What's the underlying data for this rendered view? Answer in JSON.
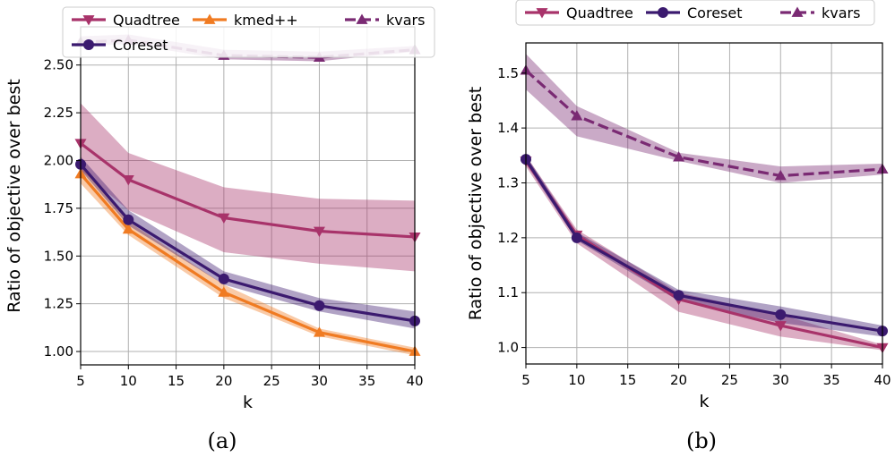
{
  "chart_data": [
    {
      "type": "line",
      "caption": "(a)",
      "xlabel": "k",
      "ylabel": "Ratio of objective over best",
      "xlim": [
        5,
        40
      ],
      "ylim": [
        0.93,
        2.7
      ],
      "xticks": [
        5,
        10,
        15,
        20,
        25,
        30,
        35,
        40
      ],
      "yticks": [
        1.0,
        1.25,
        1.5,
        1.75,
        2.0,
        2.25,
        2.5
      ],
      "ytick_labels": [
        "1.00",
        "1.25",
        "1.50",
        "1.75",
        "2.00",
        "2.25",
        "2.50"
      ],
      "grid": true,
      "legend_placement": "top",
      "x": [
        5,
        10,
        20,
        30,
        40
      ],
      "series": [
        {
          "name": "Quadtree",
          "marker": "triangle-down",
          "style": "solid",
          "color": "#a8336a",
          "values": [
            2.09,
            1.9,
            1.7,
            1.63,
            1.6
          ],
          "lower": [
            1.95,
            1.74,
            1.52,
            1.46,
            1.42
          ],
          "upper": [
            2.3,
            2.04,
            1.86,
            1.8,
            1.79
          ]
        },
        {
          "name": "kmed++",
          "marker": "triangle-up",
          "style": "solid",
          "color": "#f07b22",
          "values": [
            1.93,
            1.64,
            1.31,
            1.1,
            1.0
          ],
          "lower": [
            1.88,
            1.61,
            1.28,
            1.08,
            0.98
          ],
          "upper": [
            1.97,
            1.68,
            1.35,
            1.12,
            1.02
          ]
        },
        {
          "name": "kvars",
          "marker": "triangle-up",
          "style": "dashed",
          "color": "#7a2a73",
          "values": [
            2.62,
            2.63,
            2.55,
            2.54,
            2.58
          ],
          "lower": [
            2.6,
            2.61,
            2.53,
            2.52,
            2.57
          ],
          "upper": [
            2.65,
            2.66,
            2.58,
            2.57,
            2.6
          ]
        },
        {
          "name": "Coreset",
          "marker": "circle",
          "style": "solid",
          "color": "#3b1a6f",
          "values": [
            1.98,
            1.69,
            1.38,
            1.24,
            1.16
          ],
          "lower": [
            1.95,
            1.66,
            1.35,
            1.21,
            1.12
          ],
          "upper": [
            2.02,
            1.74,
            1.42,
            1.28,
            1.21
          ]
        }
      ]
    },
    {
      "type": "line",
      "caption": "(b)",
      "xlabel": "k",
      "ylabel": "Ratio of objective over best",
      "xlim": [
        5,
        40
      ],
      "ylim": [
        0.97,
        1.555
      ],
      "xticks": [
        5,
        10,
        15,
        20,
        25,
        30,
        35,
        40
      ],
      "yticks": [
        1.0,
        1.1,
        1.2,
        1.3,
        1.4,
        1.5
      ],
      "ytick_labels": [
        "1.0",
        "1.1",
        "1.2",
        "1.3",
        "1.4",
        "1.5"
      ],
      "grid": true,
      "legend_placement": "top",
      "x": [
        5,
        10,
        20,
        30,
        40
      ],
      "series": [
        {
          "name": "Quadtree",
          "marker": "triangle-down",
          "style": "solid",
          "color": "#a8336a",
          "values": [
            1.34,
            1.205,
            1.088,
            1.04,
            1.0
          ],
          "lower": [
            1.33,
            1.19,
            1.065,
            1.02,
            0.995
          ],
          "upper": [
            1.35,
            1.215,
            1.1,
            1.06,
            1.005
          ]
        },
        {
          "name": "Coreset",
          "marker": "circle",
          "style": "solid",
          "color": "#3b1a6f",
          "values": [
            1.343,
            1.2,
            1.095,
            1.06,
            1.03
          ],
          "lower": [
            1.335,
            1.195,
            1.085,
            1.045,
            1.02
          ],
          "upper": [
            1.35,
            1.21,
            1.105,
            1.075,
            1.04
          ]
        },
        {
          "name": "kvars",
          "marker": "triangle-up",
          "style": "dashed",
          "color": "#7a2a73",
          "values": [
            1.505,
            1.422,
            1.347,
            1.313,
            1.325
          ],
          "lower": [
            1.47,
            1.385,
            1.34,
            1.3,
            1.315
          ],
          "upper": [
            1.535,
            1.44,
            1.355,
            1.33,
            1.335
          ]
        }
      ]
    }
  ]
}
